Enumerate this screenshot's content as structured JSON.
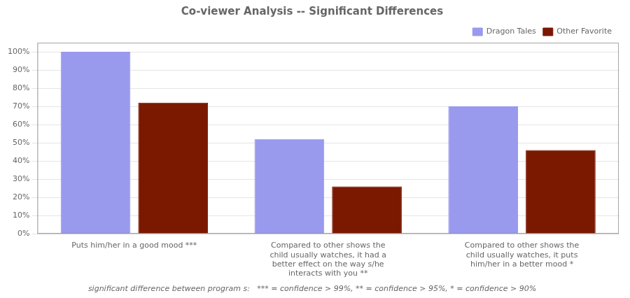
{
  "chart_data": {
    "type": "bar",
    "title": "Co-viewer Analysis -- Significant Differences",
    "footnote": "significant difference between program s:   *** = confidence > 99%, ** = confidence > 95%, * = confidence > 90%",
    "categories": [
      "Puts him/her in a good mood ***",
      "Compared to other shows the\nchild usually watches, it had a\nbetter effect on the way s/he\ninteracts with you **",
      "Compared to other shows the\nchild usually watches, it puts\nhim/her in a better mood *"
    ],
    "series": [
      {
        "name": "Dragon Tales",
        "color": "#9999ee",
        "values": [
          100,
          52,
          70
        ]
      },
      {
        "name": "Other Favorite",
        "color": "#7a1800",
        "values": [
          72,
          26,
          46
        ]
      }
    ],
    "ylim": [
      0,
      105
    ],
    "yticks": [
      {
        "value": 0,
        "label": "0%"
      },
      {
        "value": 10,
        "label": "10%"
      },
      {
        "value": 20,
        "label": "20%"
      },
      {
        "value": 30,
        "label": "30%"
      },
      {
        "value": 40,
        "label": "40%"
      },
      {
        "value": 50,
        "label": "50%"
      },
      {
        "value": 60,
        "label": "60%"
      },
      {
        "value": 70,
        "label": "70%"
      },
      {
        "value": 80,
        "label": "80%"
      },
      {
        "value": 90,
        "label": "90%"
      },
      {
        "value": 100,
        "label": "100%"
      }
    ],
    "grid": true,
    "legend": "upper right"
  }
}
